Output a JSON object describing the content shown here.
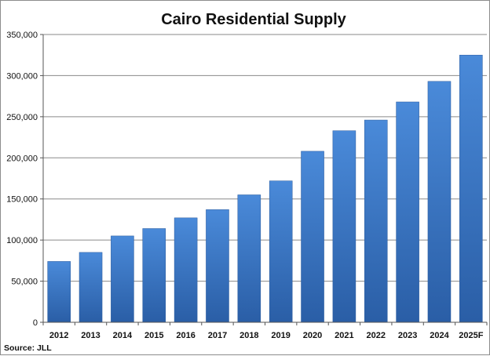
{
  "chart_data": {
    "type": "bar",
    "title": "Cairo Residential Supply",
    "categories": [
      "2012",
      "2013",
      "2014",
      "2015",
      "2016",
      "2017",
      "2018",
      "2019",
      "2020",
      "2021",
      "2022",
      "2023",
      "2024",
      "2025F"
    ],
    "values": [
      74000,
      85000,
      105000,
      114000,
      127000,
      137000,
      155000,
      172000,
      208000,
      233000,
      246000,
      268000,
      293000,
      325000
    ],
    "ylim": [
      0,
      350000
    ],
    "yticks": [
      "0",
      "50,000",
      "100,000",
      "150,000",
      "200,000",
      "250,000",
      "300,000",
      "350,000"
    ],
    "ytick_values": [
      0,
      50000,
      100000,
      150000,
      200000,
      250000,
      300000,
      350000
    ],
    "xlabel": "",
    "ylabel": "",
    "grid": true,
    "legend": "none",
    "bar_color": "#3a78c8",
    "source": "Source: JLL"
  }
}
